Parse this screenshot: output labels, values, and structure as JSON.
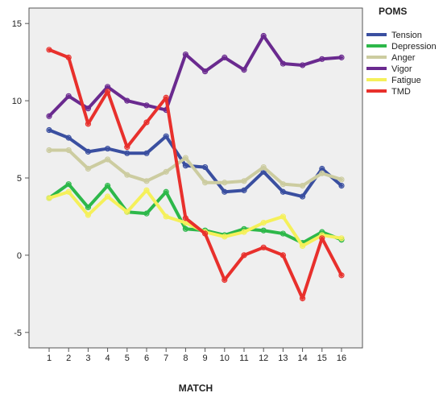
{
  "chart_data": {
    "type": "line",
    "xlabel": "MATCH",
    "ylabel": "",
    "ylim": [
      -6,
      16
    ],
    "y_ticks": [
      -5,
      0,
      5,
      10,
      15
    ],
    "x": [
      1,
      2,
      3,
      4,
      5,
      6,
      7,
      8,
      9,
      10,
      11,
      12,
      13,
      14,
      15,
      16
    ],
    "grid": false,
    "plot_background": "#efefef",
    "legend": {
      "title": "POMS",
      "position": "right"
    },
    "series": [
      {
        "name": "Tension",
        "color": "#3a4fa0",
        "values": [
          8.1,
          7.6,
          6.7,
          6.9,
          6.6,
          6.6,
          7.7,
          5.8,
          5.7,
          4.1,
          4.2,
          5.4,
          4.1,
          3.8,
          5.6,
          4.5
        ]
      },
      {
        "name": "Depression",
        "color": "#2db84a",
        "values": [
          3.7,
          4.6,
          3.1,
          4.5,
          2.8,
          2.7,
          4.1,
          1.7,
          1.6,
          1.3,
          1.7,
          1.6,
          1.4,
          0.8,
          1.5,
          1.0
        ]
      },
      {
        "name": "Anger",
        "color": "#cccca0",
        "values": [
          6.8,
          6.8,
          5.6,
          6.2,
          5.2,
          4.8,
          5.4,
          6.3,
          4.7,
          4.7,
          4.8,
          5.7,
          4.6,
          4.5,
          5.3,
          4.9
        ]
      },
      {
        "name": "Vigor",
        "color": "#6a2a8f",
        "values": [
          9.0,
          10.3,
          9.5,
          10.9,
          10.0,
          9.7,
          9.4,
          13.0,
          11.9,
          12.8,
          12.0,
          14.2,
          12.4,
          12.3,
          12.7,
          12.8
        ]
      },
      {
        "name": "Fatigue",
        "color": "#f5f05a",
        "values": [
          3.7,
          4.1,
          2.6,
          3.8,
          2.8,
          4.2,
          2.5,
          2.1,
          1.5,
          1.2,
          1.5,
          2.1,
          2.5,
          0.6,
          1.3,
          1.1
        ]
      },
      {
        "name": "TMD",
        "color": "#e8302c",
        "values": [
          13.3,
          12.8,
          8.5,
          10.6,
          7.0,
          8.6,
          10.2,
          2.4,
          1.4,
          -1.6,
          0.0,
          0.5,
          0.0,
          -2.8,
          1.1,
          -1.3
        ]
      }
    ]
  }
}
